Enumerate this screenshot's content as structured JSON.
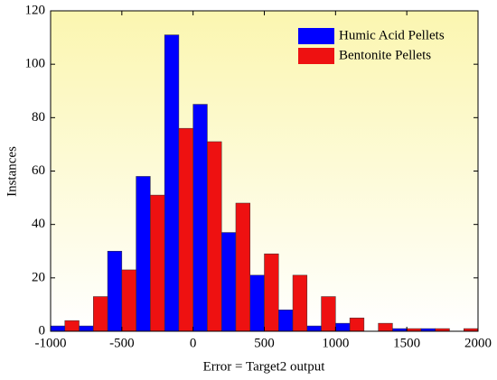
{
  "chart_data": {
    "type": "histogram",
    "x_label": "Error = Target2  output",
    "y_label": "Instances",
    "bins": [
      -1000,
      -800,
      -600,
      -400,
      -200,
      0,
      200,
      400,
      600,
      800,
      1000,
      1200,
      1400,
      1600,
      1800,
      2000
    ],
    "series": [
      {
        "name": "Humic Acid Pellets",
        "color": "#0000ff",
        "values": [
          2,
          2,
          30,
          58,
          111,
          85,
          37,
          21,
          8,
          2,
          3,
          0,
          1,
          1,
          0
        ]
      },
      {
        "name": "Bentonite Pellets",
        "color": "#ee1111",
        "values": [
          4,
          13,
          23,
          51,
          76,
          71,
          48,
          29,
          21,
          13,
          5,
          3,
          1,
          1,
          1
        ]
      }
    ],
    "xlim": [
      -1000,
      2000
    ],
    "xticks": [
      -1000,
      -500,
      0,
      500,
      1000,
      1500,
      2000
    ],
    "ylim": [
      0,
      120
    ],
    "yticks": [
      0,
      20,
      40,
      60,
      80,
      100,
      120
    ],
    "legend": "top-right"
  }
}
